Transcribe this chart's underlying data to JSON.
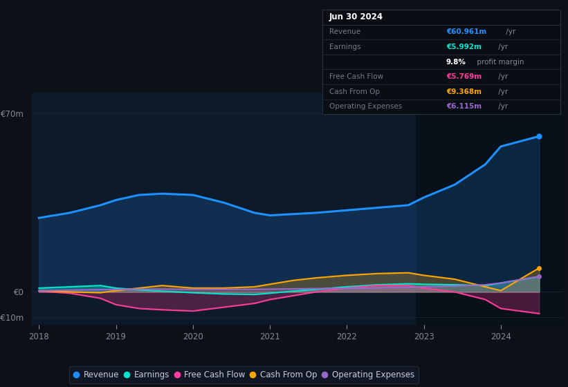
{
  "bg_color": "#0d1117",
  "plot_bg_color": "#0d1a2a",
  "title": "Jun 30 2024",
  "x_years": [
    2018.0,
    2018.4,
    2018.8,
    2019.0,
    2019.3,
    2019.6,
    2020.0,
    2020.4,
    2020.8,
    2021.0,
    2021.3,
    2021.6,
    2022.0,
    2022.4,
    2022.8,
    2023.0,
    2023.4,
    2023.8,
    2024.0,
    2024.5
  ],
  "revenue": [
    29,
    31,
    34,
    36,
    38,
    38.5,
    38,
    35,
    31,
    30,
    30.5,
    31,
    32,
    33,
    34,
    37,
    42,
    50,
    57,
    61
  ],
  "earnings": [
    1.5,
    2.0,
    2.5,
    1.5,
    0.8,
    0.3,
    -0.3,
    -0.8,
    -1.0,
    -0.5,
    0.3,
    1.0,
    2.0,
    2.8,
    3.2,
    3.0,
    2.8,
    2.5,
    3.5,
    6.0
  ],
  "free_cash_flow": [
    0.3,
    -0.5,
    -2.5,
    -5.0,
    -6.5,
    -7.0,
    -7.5,
    -6.0,
    -4.5,
    -3.0,
    -1.5,
    0.0,
    1.5,
    2.5,
    2.5,
    1.5,
    0.0,
    -3.0,
    -6.5,
    -8.5
  ],
  "cash_from_op": [
    0.5,
    0.0,
    -0.3,
    0.5,
    1.5,
    2.5,
    1.5,
    1.5,
    2.0,
    3.0,
    4.5,
    5.5,
    6.5,
    7.2,
    7.5,
    6.5,
    5.0,
    2.0,
    0.5,
    9.4
  ],
  "operating_expenses": [
    0.5,
    0.7,
    0.9,
    1.0,
    1.1,
    1.1,
    1.0,
    1.0,
    1.0,
    1.1,
    1.2,
    1.3,
    1.4,
    1.6,
    1.8,
    2.0,
    2.3,
    2.8,
    3.5,
    6.1
  ],
  "ylim": [
    -13,
    78
  ],
  "xticks": [
    2018,
    2019,
    2020,
    2021,
    2022,
    2023,
    2024
  ],
  "colors": {
    "revenue": "#1e90ff",
    "earnings": "#00e5cc",
    "free_cash_flow": "#ff3d9a",
    "cash_from_op": "#ffa500",
    "operating_expenses": "#9966cc"
  },
  "legend_items": [
    "Revenue",
    "Earnings",
    "Free Cash Flow",
    "Cash From Op",
    "Operating Expenses"
  ],
  "legend_colors": [
    "#1e90ff",
    "#00e5cc",
    "#ff3d9a",
    "#ffa500",
    "#9966cc"
  ],
  "shade_split_x": 2022.9,
  "text_color": "#888899",
  "grid_color": "#1a2a3a",
  "zero_line_color": "#2a3a4a",
  "info_bg": "#090e14",
  "info_border": "#2a3040",
  "info_title_color": "#ffffff",
  "info_label_color": "#777788",
  "info_suffix_color": "#888899"
}
